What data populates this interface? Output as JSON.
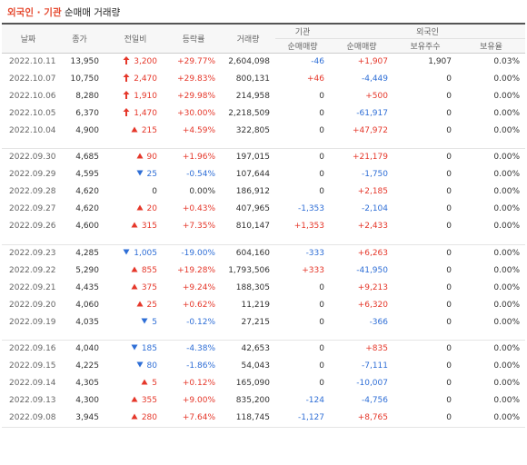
{
  "title": {
    "accent": "외국인 · 기관",
    "rest": "순매매 거래량"
  },
  "colors": {
    "up": "#e5372a",
    "down": "#2e6ed6",
    "accent": "#e5492f"
  },
  "headers": {
    "date": "날짜",
    "close": "종가",
    "change": "전일비",
    "rate": "등락률",
    "volume": "거래량",
    "institution": "기관",
    "foreign": "외국인",
    "inst_net": "순매매량",
    "foreign_net": "순매매량",
    "foreign_hold": "보유주수",
    "foreign_ratio": "보유율"
  },
  "groups": [
    [
      {
        "date": "2022.10.11",
        "close": "13,950",
        "arrow": "limit-up",
        "change": "3,200",
        "rate": "+29.77%",
        "volume": "2,604,098",
        "inst": "-46",
        "frgn": "+1,907",
        "hold": "1,907",
        "ratio": "0.03%"
      },
      {
        "date": "2022.10.07",
        "close": "10,750",
        "arrow": "limit-up",
        "change": "2,470",
        "rate": "+29.83%",
        "volume": "800,131",
        "inst": "+46",
        "frgn": "-4,449",
        "hold": "0",
        "ratio": "0.00%"
      },
      {
        "date": "2022.10.06",
        "close": "8,280",
        "arrow": "limit-up",
        "change": "1,910",
        "rate": "+29.98%",
        "volume": "214,958",
        "inst": "0",
        "frgn": "+500",
        "hold": "0",
        "ratio": "0.00%"
      },
      {
        "date": "2022.10.05",
        "close": "6,370",
        "arrow": "limit-up",
        "change": "1,470",
        "rate": "+30.00%",
        "volume": "2,218,509",
        "inst": "0",
        "frgn": "-61,917",
        "hold": "0",
        "ratio": "0.00%"
      },
      {
        "date": "2022.10.04",
        "close": "4,900",
        "arrow": "up",
        "change": "215",
        "rate": "+4.59%",
        "volume": "322,805",
        "inst": "0",
        "frgn": "+47,972",
        "hold": "0",
        "ratio": "0.00%"
      }
    ],
    [
      {
        "date": "2022.09.30",
        "close": "4,685",
        "arrow": "up",
        "change": "90",
        "rate": "+1.96%",
        "volume": "197,015",
        "inst": "0",
        "frgn": "+21,179",
        "hold": "0",
        "ratio": "0.00%"
      },
      {
        "date": "2022.09.29",
        "close": "4,595",
        "arrow": "down",
        "change": "25",
        "rate": "-0.54%",
        "volume": "107,644",
        "inst": "0",
        "frgn": "-1,750",
        "hold": "0",
        "ratio": "0.00%"
      },
      {
        "date": "2022.09.28",
        "close": "4,620",
        "arrow": "none",
        "change": "0",
        "rate": "0.00%",
        "volume": "186,912",
        "inst": "0",
        "frgn": "+2,185",
        "hold": "0",
        "ratio": "0.00%"
      },
      {
        "date": "2022.09.27",
        "close": "4,620",
        "arrow": "up",
        "change": "20",
        "rate": "+0.43%",
        "volume": "407,965",
        "inst": "-1,353",
        "frgn": "-2,104",
        "hold": "0",
        "ratio": "0.00%"
      },
      {
        "date": "2022.09.26",
        "close": "4,600",
        "arrow": "up",
        "change": "315",
        "rate": "+7.35%",
        "volume": "810,147",
        "inst": "+1,353",
        "frgn": "+2,433",
        "hold": "0",
        "ratio": "0.00%"
      }
    ],
    [
      {
        "date": "2022.09.23",
        "close": "4,285",
        "arrow": "down",
        "change": "1,005",
        "rate": "-19.00%",
        "volume": "604,160",
        "inst": "-333",
        "frgn": "+6,263",
        "hold": "0",
        "ratio": "0.00%"
      },
      {
        "date": "2022.09.22",
        "close": "5,290",
        "arrow": "up",
        "change": "855",
        "rate": "+19.28%",
        "volume": "1,793,506",
        "inst": "+333",
        "frgn": "-41,950",
        "hold": "0",
        "ratio": "0.00%"
      },
      {
        "date": "2022.09.21",
        "close": "4,435",
        "arrow": "up",
        "change": "375",
        "rate": "+9.24%",
        "volume": "188,305",
        "inst": "0",
        "frgn": "+9,213",
        "hold": "0",
        "ratio": "0.00%"
      },
      {
        "date": "2022.09.20",
        "close": "4,060",
        "arrow": "up",
        "change": "25",
        "rate": "+0.62%",
        "volume": "11,219",
        "inst": "0",
        "frgn": "+6,320",
        "hold": "0",
        "ratio": "0.00%"
      },
      {
        "date": "2022.09.19",
        "close": "4,035",
        "arrow": "down",
        "change": "5",
        "rate": "-0.12%",
        "volume": "27,215",
        "inst": "0",
        "frgn": "-366",
        "hold": "0",
        "ratio": "0.00%"
      }
    ],
    [
      {
        "date": "2022.09.16",
        "close": "4,040",
        "arrow": "down",
        "change": "185",
        "rate": "-4.38%",
        "volume": "42,653",
        "inst": "0",
        "frgn": "+835",
        "hold": "0",
        "ratio": "0.00%"
      },
      {
        "date": "2022.09.15",
        "close": "4,225",
        "arrow": "down",
        "change": "80",
        "rate": "-1.86%",
        "volume": "54,043",
        "inst": "0",
        "frgn": "-7,111",
        "hold": "0",
        "ratio": "0.00%"
      },
      {
        "date": "2022.09.14",
        "close": "4,305",
        "arrow": "up",
        "change": "5",
        "rate": "+0.12%",
        "volume": "165,090",
        "inst": "0",
        "frgn": "-10,007",
        "hold": "0",
        "ratio": "0.00%"
      },
      {
        "date": "2022.09.13",
        "close": "4,300",
        "arrow": "up",
        "change": "355",
        "rate": "+9.00%",
        "volume": "835,200",
        "inst": "-124",
        "frgn": "-4,756",
        "hold": "0",
        "ratio": "0.00%"
      },
      {
        "date": "2022.09.08",
        "close": "3,945",
        "arrow": "up",
        "change": "280",
        "rate": "+7.64%",
        "volume": "118,745",
        "inst": "-1,127",
        "frgn": "+8,765",
        "hold": "0",
        "ratio": "0.00%"
      }
    ]
  ]
}
